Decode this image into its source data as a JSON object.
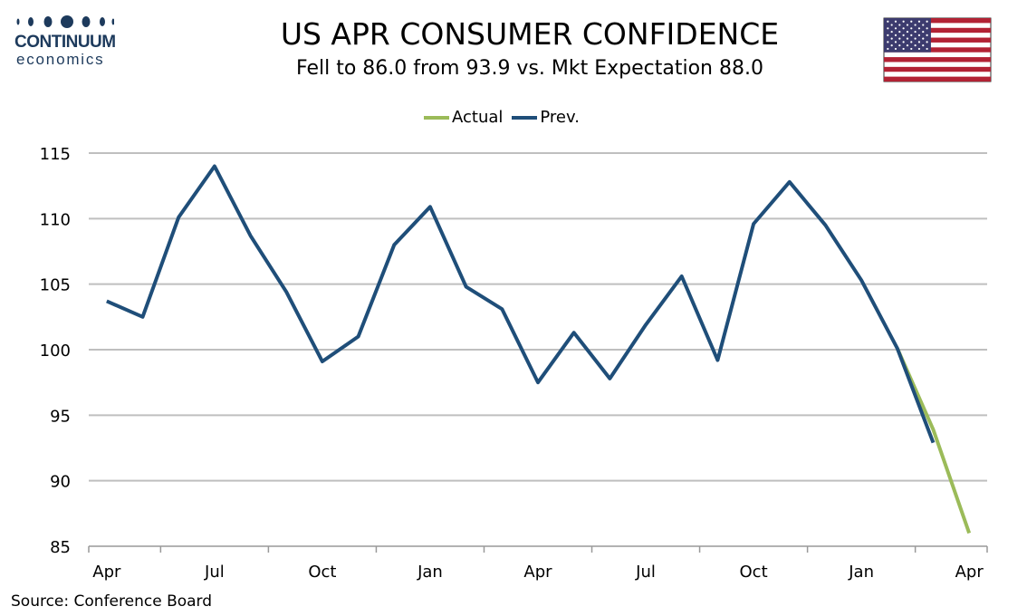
{
  "branding": {
    "logo_name": "CONTINUUM",
    "logo_sub": "economics",
    "logo_color": "#1d3a5c"
  },
  "header": {
    "title": "US APR CONSUMER CONFIDENCE",
    "subtitle": "Fell to 86.0 from 93.9 vs. Mkt Expectation 88.0",
    "flag": "us-flag-icon"
  },
  "legend": {
    "items": [
      {
        "label": "Actual",
        "color": "#9bbb59"
      },
      {
        "label": "Prev.",
        "color": "#1f4e79"
      }
    ]
  },
  "chart_data": {
    "type": "line",
    "title": "US APR CONSUMER CONFIDENCE",
    "subtitle": "Fell to 86.0 from 93.9 vs. Mkt Expectation 88.0",
    "ylim": [
      85,
      115
    ],
    "yticks": [
      85,
      90,
      95,
      100,
      105,
      110,
      115
    ],
    "xtick_labels": [
      "Apr",
      "Jul",
      "Oct",
      "Jan",
      "Apr",
      "Jul",
      "Oct",
      "Jan",
      "Apr"
    ],
    "xtick_month_index": [
      0,
      3,
      6,
      9,
      12,
      15,
      18,
      21,
      24
    ],
    "grid": true,
    "legend_position": "top-center",
    "series": [
      {
        "name": "Actual",
        "color": "#9bbb59",
        "start_index": 22,
        "values": [
          100.1,
          93.9,
          86.0
        ]
      },
      {
        "name": "Prev.",
        "color": "#1f4e79",
        "start_index": 0,
        "values": [
          103.7,
          102.5,
          110.1,
          114.0,
          108.7,
          104.4,
          99.1,
          101.0,
          108.0,
          110.9,
          104.8,
          103.1,
          97.5,
          101.3,
          97.8,
          101.9,
          105.6,
          99.2,
          109.6,
          112.8,
          109.5,
          105.3,
          100.1,
          92.9
        ]
      }
    ]
  },
  "footer": {
    "source": "Source: Conference Board"
  }
}
